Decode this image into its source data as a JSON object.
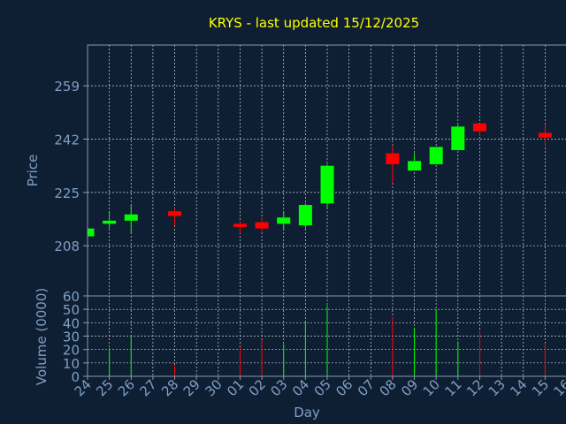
{
  "colors": {
    "background": "#0f1f33",
    "panel_border": "#8a9aaa",
    "grid": "#c8d2dc",
    "axis_text": "#7f9fc4",
    "title": "#ffff00",
    "up": "#00ff00",
    "down": "#ff0000"
  },
  "chart_data": {
    "type": "candlestick",
    "title": "KRYS - last updated 15/12/2025",
    "price_panel": {
      "ylabel": "Price",
      "yticks": [
        208,
        225,
        242,
        259
      ],
      "ylim": [
        192,
        272
      ],
      "grid": true
    },
    "volume_panel": {
      "ylabel": "Volume (0000)",
      "yticks": [
        0,
        10,
        20,
        30,
        40,
        50,
        60
      ],
      "ylim": [
        0,
        60
      ],
      "grid": true
    },
    "xlabel": "Day",
    "xticks": [
      "24",
      "25",
      "26",
      "27",
      "28",
      "29",
      "30",
      "01",
      "02",
      "03",
      "04",
      "05",
      "06",
      "07",
      "08",
      "09",
      "10",
      "11",
      "12",
      "13",
      "14",
      "15",
      "16"
    ],
    "candles": [
      {
        "day": "24",
        "open": 211,
        "high": 213.5,
        "low": 210.5,
        "close": 213.5,
        "volume": 0
      },
      {
        "day": "25",
        "open": 215,
        "high": 219,
        "low": 213.5,
        "close": 216,
        "volume": 21
      },
      {
        "day": "26",
        "open": 216,
        "high": 221,
        "low": 212,
        "close": 218,
        "volume": 31
      },
      {
        "day": "28",
        "open": 219,
        "high": 220,
        "low": 214.5,
        "close": 217.5,
        "volume": 8
      },
      {
        "day": "01",
        "open": 215,
        "high": 216,
        "low": 212,
        "close": 214,
        "volume": 22
      },
      {
        "day": "02",
        "open": 215.5,
        "high": 217,
        "low": 212.5,
        "close": 213.5,
        "volume": 27
      },
      {
        "day": "03",
        "open": 215,
        "high": 219,
        "low": 213,
        "close": 217,
        "volume": 24
      },
      {
        "day": "04",
        "open": 214.5,
        "high": 221.5,
        "low": 213.5,
        "close": 221,
        "volume": 41
      },
      {
        "day": "05",
        "open": 221.5,
        "high": 234,
        "low": 220,
        "close": 233.5,
        "volume": 53
      },
      {
        "day": "08",
        "open": 237.5,
        "high": 240,
        "low": 228,
        "close": 234,
        "volume": 44
      },
      {
        "day": "09",
        "open": 232,
        "high": 237.5,
        "low": 232,
        "close": 235,
        "volume": 36
      },
      {
        "day": "10",
        "open": 234,
        "high": 239.5,
        "low": 234,
        "close": 239.5,
        "volume": 50
      },
      {
        "day": "11",
        "open": 238.5,
        "high": 246.5,
        "low": 238.5,
        "close": 246,
        "volume": 26
      },
      {
        "day": "12",
        "open": 247,
        "high": 247,
        "low": 243,
        "close": 244.5,
        "volume": 34
      },
      {
        "day": "15",
        "open": 244,
        "high": 246.5,
        "low": 240,
        "close": 242.5,
        "volume": 24
      }
    ]
  }
}
